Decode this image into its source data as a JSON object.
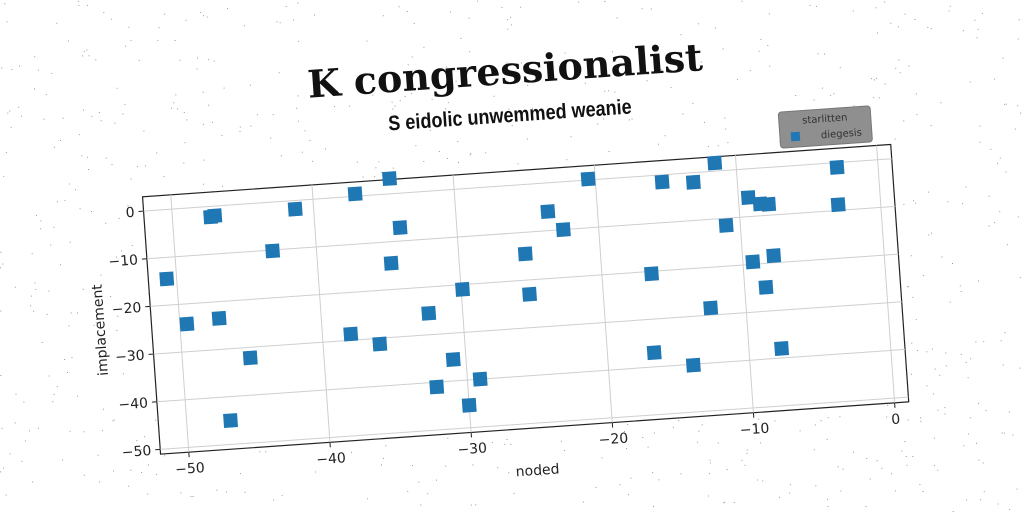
{
  "title": "K congressionalist",
  "subtitle": "S eidolic unwemmed weanie",
  "chart_data": {
    "type": "scatter",
    "xlabel": "noded",
    "ylabel": "implacement",
    "xlim": [
      -52,
      1
    ],
    "ylim": [
      -51,
      3
    ],
    "xticks": [
      -50,
      -40,
      -30,
      -20,
      -10,
      0
    ],
    "yticks": [
      0,
      -10,
      -20,
      -30,
      -40,
      -50
    ],
    "grid": true,
    "legend": {
      "title": "starlitten",
      "position": "top-right"
    },
    "series": [
      {
        "name": "diegesis",
        "color": "#1f77b4",
        "marker": "square",
        "points": [
          [
            -50.7,
            -14.5
          ],
          [
            -49.5,
            -24.2
          ],
          [
            -47.3,
            -2.2
          ],
          [
            -47.0,
            -2.0
          ],
          [
            -47.2,
            -23.5
          ],
          [
            -46.9,
            -45.0
          ],
          [
            -45.2,
            -32.2
          ],
          [
            -43.1,
            -10.2
          ],
          [
            -41.3,
            -1.8
          ],
          [
            -38.0,
            -28.7
          ],
          [
            -37.0,
            0.5
          ],
          [
            -36.0,
            -31.2
          ],
          [
            -34.8,
            -14.5
          ],
          [
            -34.5,
            3.2
          ],
          [
            -34.0,
            -7.2
          ],
          [
            -32.4,
            -25.5
          ],
          [
            -32.2,
            -41.0
          ],
          [
            -30.9,
            -35.5
          ],
          [
            -29.9,
            -21.0
          ],
          [
            -30.0,
            -45.3
          ],
          [
            -29.1,
            -40.0
          ],
          [
            -25.3,
            -14.5
          ],
          [
            -25.2,
            -23.0
          ],
          [
            -23.5,
            -6.0
          ],
          [
            -22.5,
            -10.0
          ],
          [
            -20.5,
            0.2
          ],
          [
            -16.5,
            -20.5
          ],
          [
            -16.7,
            -37.0
          ],
          [
            -15.3,
            -1.5
          ],
          [
            -14.0,
            -40.2
          ],
          [
            -13.1,
            -2.0
          ],
          [
            -12.5,
            -28.5
          ],
          [
            -11.5,
            1.7
          ],
          [
            -11.0,
            -11.5
          ],
          [
            -9.3,
            -6.0
          ],
          [
            -9.3,
            -19.5
          ],
          [
            -8.5,
            -25.0
          ],
          [
            -8.5,
            -7.5
          ],
          [
            -7.9,
            -7.7
          ],
          [
            -7.8,
            -18.5
          ],
          [
            -7.7,
            -38.0
          ],
          [
            -2.9,
            -1.0
          ],
          [
            -3.0,
            -8.8
          ]
        ]
      }
    ]
  }
}
